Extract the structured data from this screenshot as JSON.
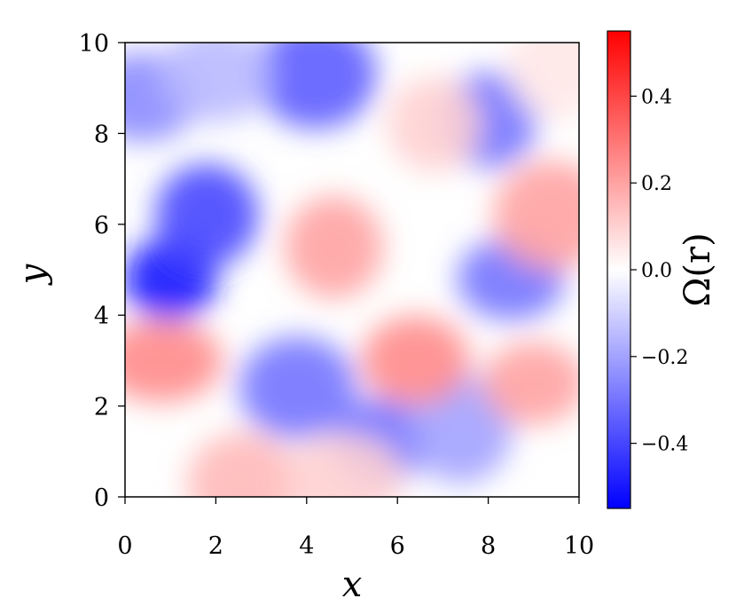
{
  "chart_data": {
    "type": "heatmap",
    "xlabel": "x",
    "ylabel": "y",
    "xlim": [
      0,
      10
    ],
    "ylim": [
      0,
      10
    ],
    "x_ticks": [
      0,
      2,
      4,
      6,
      8,
      10
    ],
    "y_ticks": [
      0,
      2,
      4,
      6,
      8,
      10
    ],
    "x_tick_labels": [
      "0",
      "2",
      "4",
      "6",
      "8",
      "10"
    ],
    "y_tick_labels": [
      "0",
      "2",
      "4",
      "6",
      "8",
      "10"
    ],
    "colormap": "bwr",
    "colors": {
      "low": "#0000ff",
      "mid": "#ffffff",
      "high": "#ff0000"
    },
    "colorbar": {
      "label": "Ω(r)",
      "range": [
        -0.55,
        0.55
      ],
      "ticks": [
        -0.4,
        -0.2,
        0.0,
        0.2,
        0.4
      ],
      "tick_labels": [
        "−0.4",
        "−0.2",
        "0.0",
        "0.2",
        "0.4"
      ],
      "position": "right"
    },
    "field_features": [
      {
        "x": 1.0,
        "y": 4.8,
        "value": -0.5
      },
      {
        "x": 1.8,
        "y": 6.2,
        "value": -0.4
      },
      {
        "x": 0.4,
        "y": 8.8,
        "value": -0.25
      },
      {
        "x": 4.2,
        "y": 9.3,
        "value": -0.35
      },
      {
        "x": 8.0,
        "y": 8.3,
        "value": -0.3
      },
      {
        "x": 8.5,
        "y": 4.8,
        "value": -0.3
      },
      {
        "x": 3.8,
        "y": 2.4,
        "value": -0.3
      },
      {
        "x": 5.6,
        "y": 1.2,
        "value": -0.3
      },
      {
        "x": 7.4,
        "y": 1.5,
        "value": -0.2
      },
      {
        "x": 2.0,
        "y": 9.3,
        "value": -0.15
      },
      {
        "x": 0.8,
        "y": 3.0,
        "value": 0.25
      },
      {
        "x": 4.6,
        "y": 5.5,
        "value": 0.2
      },
      {
        "x": 6.4,
        "y": 3.0,
        "value": 0.25
      },
      {
        "x": 9.4,
        "y": 6.2,
        "value": 0.2
      },
      {
        "x": 6.8,
        "y": 8.2,
        "value": 0.1
      },
      {
        "x": 9.0,
        "y": 2.5,
        "value": 0.2
      },
      {
        "x": 2.6,
        "y": 0.3,
        "value": 0.15
      },
      {
        "x": 4.8,
        "y": 0.4,
        "value": 0.1
      },
      {
        "x": 9.5,
        "y": 9.5,
        "value": 0.05
      }
    ]
  }
}
